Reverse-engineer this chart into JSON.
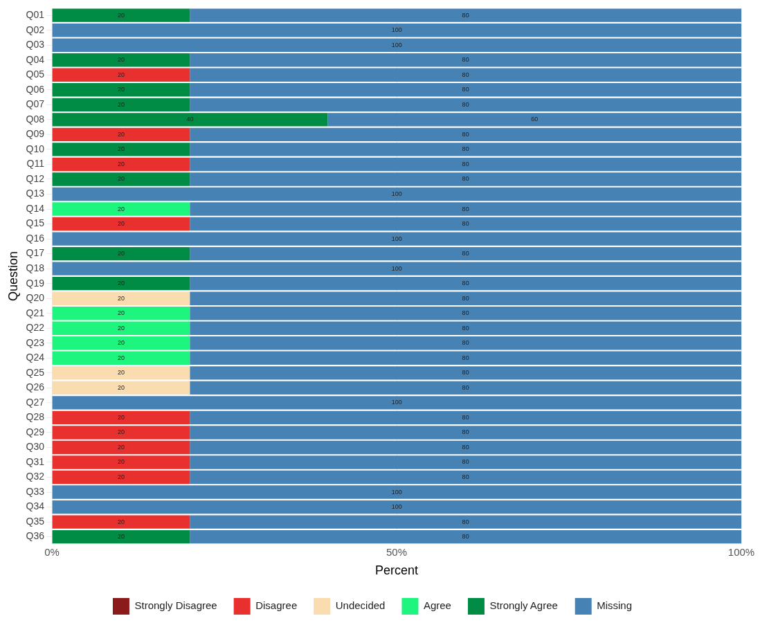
{
  "chart_data": {
    "type": "bar",
    "orientation": "horizontal",
    "stacked": true,
    "data_labels": true,
    "xlabel": "Percent",
    "ylabel": "Question",
    "legend": "bottom",
    "grid": true,
    "categories": [
      "Q01",
      "Q02",
      "Q03",
      "Q04",
      "Q05",
      "Q06",
      "Q07",
      "Q08",
      "Q09",
      "Q10",
      "Q11",
      "Q12",
      "Q13",
      "Q14",
      "Q15",
      "Q16",
      "Q17",
      "Q18",
      "Q19",
      "Q20",
      "Q21",
      "Q22",
      "Q23",
      "Q24",
      "Q25",
      "Q26",
      "Q27",
      "Q28",
      "Q29",
      "Q30",
      "Q31",
      "Q32",
      "Q33",
      "Q34",
      "Q35",
      "Q36"
    ],
    "xlim": [
      0,
      100
    ],
    "xticks": [
      {
        "value": 0,
        "label": "0%"
      },
      {
        "value": 50,
        "label": "50%"
      },
      {
        "value": 100,
        "label": "100%"
      }
    ],
    "series": [
      {
        "name": "Strongly Disagree",
        "color": "#8b1a1a",
        "values": [
          null,
          null,
          null,
          null,
          null,
          null,
          null,
          null,
          null,
          null,
          null,
          null,
          null,
          null,
          null,
          null,
          null,
          null,
          null,
          null,
          null,
          null,
          null,
          null,
          null,
          null,
          null,
          null,
          null,
          null,
          null,
          null,
          null,
          null,
          null,
          null
        ]
      },
      {
        "name": "Disagree",
        "color": "#e8302f",
        "values": [
          null,
          null,
          null,
          null,
          20,
          null,
          null,
          null,
          20,
          null,
          20,
          null,
          null,
          null,
          20,
          null,
          null,
          null,
          null,
          null,
          null,
          null,
          null,
          null,
          null,
          null,
          null,
          20,
          20,
          20,
          20,
          20,
          null,
          null,
          20,
          null
        ]
      },
      {
        "name": "Undecided",
        "color": "#f9dcb0",
        "values": [
          null,
          null,
          null,
          null,
          null,
          null,
          null,
          null,
          null,
          null,
          null,
          null,
          null,
          null,
          null,
          null,
          null,
          null,
          null,
          20,
          null,
          null,
          null,
          null,
          20,
          20,
          null,
          null,
          null,
          null,
          null,
          null,
          null,
          null,
          null,
          null
        ]
      },
      {
        "name": "Agree",
        "color": "#1ef57e",
        "values": [
          null,
          null,
          null,
          null,
          null,
          null,
          null,
          null,
          null,
          null,
          null,
          null,
          null,
          20,
          null,
          null,
          null,
          null,
          null,
          null,
          20,
          20,
          20,
          20,
          null,
          null,
          null,
          null,
          null,
          null,
          null,
          null,
          null,
          null,
          null,
          null
        ]
      },
      {
        "name": "Strongly Agree",
        "color": "#008c45",
        "values": [
          20,
          null,
          null,
          20,
          null,
          20,
          20,
          40,
          null,
          20,
          null,
          20,
          null,
          null,
          null,
          null,
          20,
          null,
          20,
          null,
          null,
          null,
          null,
          null,
          null,
          null,
          null,
          null,
          null,
          null,
          null,
          null,
          null,
          null,
          null,
          20
        ]
      },
      {
        "name": "Missing",
        "color": "#4682b4",
        "values": [
          80,
          100,
          100,
          80,
          80,
          80,
          80,
          60,
          80,
          80,
          80,
          80,
          100,
          80,
          80,
          100,
          80,
          100,
          80,
          80,
          80,
          80,
          80,
          80,
          80,
          80,
          100,
          80,
          80,
          80,
          80,
          80,
          100,
          100,
          80,
          80
        ]
      }
    ]
  }
}
